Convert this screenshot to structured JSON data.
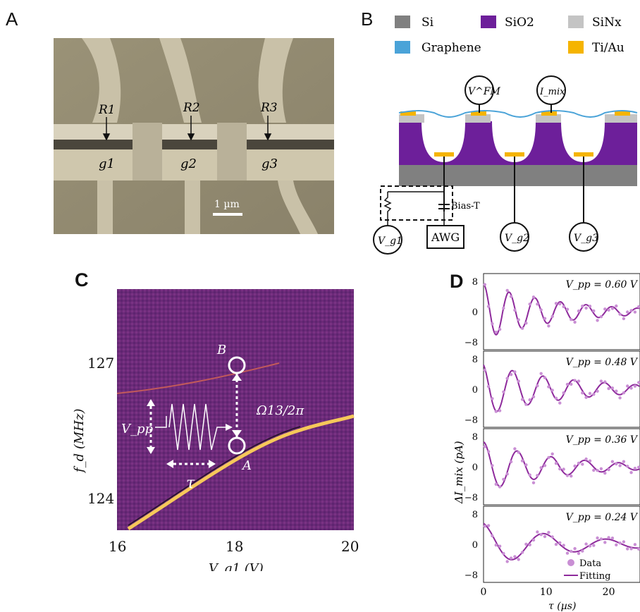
{
  "panels": {
    "A": {
      "label": "A",
      "resistors": [
        "R1",
        "R2",
        "R3"
      ],
      "gates": [
        "g1",
        "g2",
        "g3"
      ],
      "scalebar": "1 µm"
    },
    "B": {
      "label": "B",
      "legend": [
        {
          "name": "Si",
          "color": "#808080"
        },
        {
          "name": "SiO2",
          "color": "#6d1f9a"
        },
        {
          "name": "SiNx",
          "color": "#c4c4c4"
        },
        {
          "name": "Graphene",
          "color": "#4aa3d8"
        },
        {
          "name": "Ti/Au",
          "color": "#f5b400"
        }
      ],
      "probes": [
        "V^FM",
        "I_mix"
      ],
      "bottom": [
        "V_g1",
        "AWG",
        "V_g2",
        "V_g3"
      ],
      "biasT": "Bias-T"
    },
    "C": {
      "label": "C",
      "ylabel": "f_d (MHz)",
      "xlabel": "V_g1 (V)",
      "yticks": [
        "127",
        "124"
      ],
      "xticks": [
        "16",
        "18",
        "20"
      ],
      "pointA": "A",
      "pointB": "B",
      "omega": "Ω13/2π",
      "vpp": "V_pp",
      "tau": "τ"
    },
    "D": {
      "label": "D",
      "ylabel": "ΔI_mix (pA)",
      "xlabel": "τ (µs)",
      "xticks": [
        "0",
        "10",
        "20"
      ],
      "yticks": [
        "8",
        "0",
        "−8"
      ],
      "legend_data": "Data",
      "legend_fit": "Fitting"
    }
  },
  "chart_data": {
    "type": "line",
    "xlabel": "τ (µs)",
    "ylabel": "ΔI_mix (pA)",
    "xlim": [
      0,
      25
    ],
    "ylim": [
      -8,
      8
    ],
    "series": [
      {
        "name": "V_pp = 0.60 V",
        "amp": 7.2,
        "period": 4.1,
        "decay": 12,
        "phase": 0.0
      },
      {
        "name": "V_pp = 0.48 V",
        "amp": 6.8,
        "period": 4.9,
        "decay": 14,
        "phase": 0.35
      },
      {
        "name": "V_pp = 0.36 V",
        "amp": 6.5,
        "period": 5.4,
        "decay": 12,
        "phase": 0.0
      },
      {
        "name": "V_pp = 0.24 V",
        "amp": 5.6,
        "period": 10.0,
        "decay": 14,
        "phase": 0.2
      }
    ]
  }
}
